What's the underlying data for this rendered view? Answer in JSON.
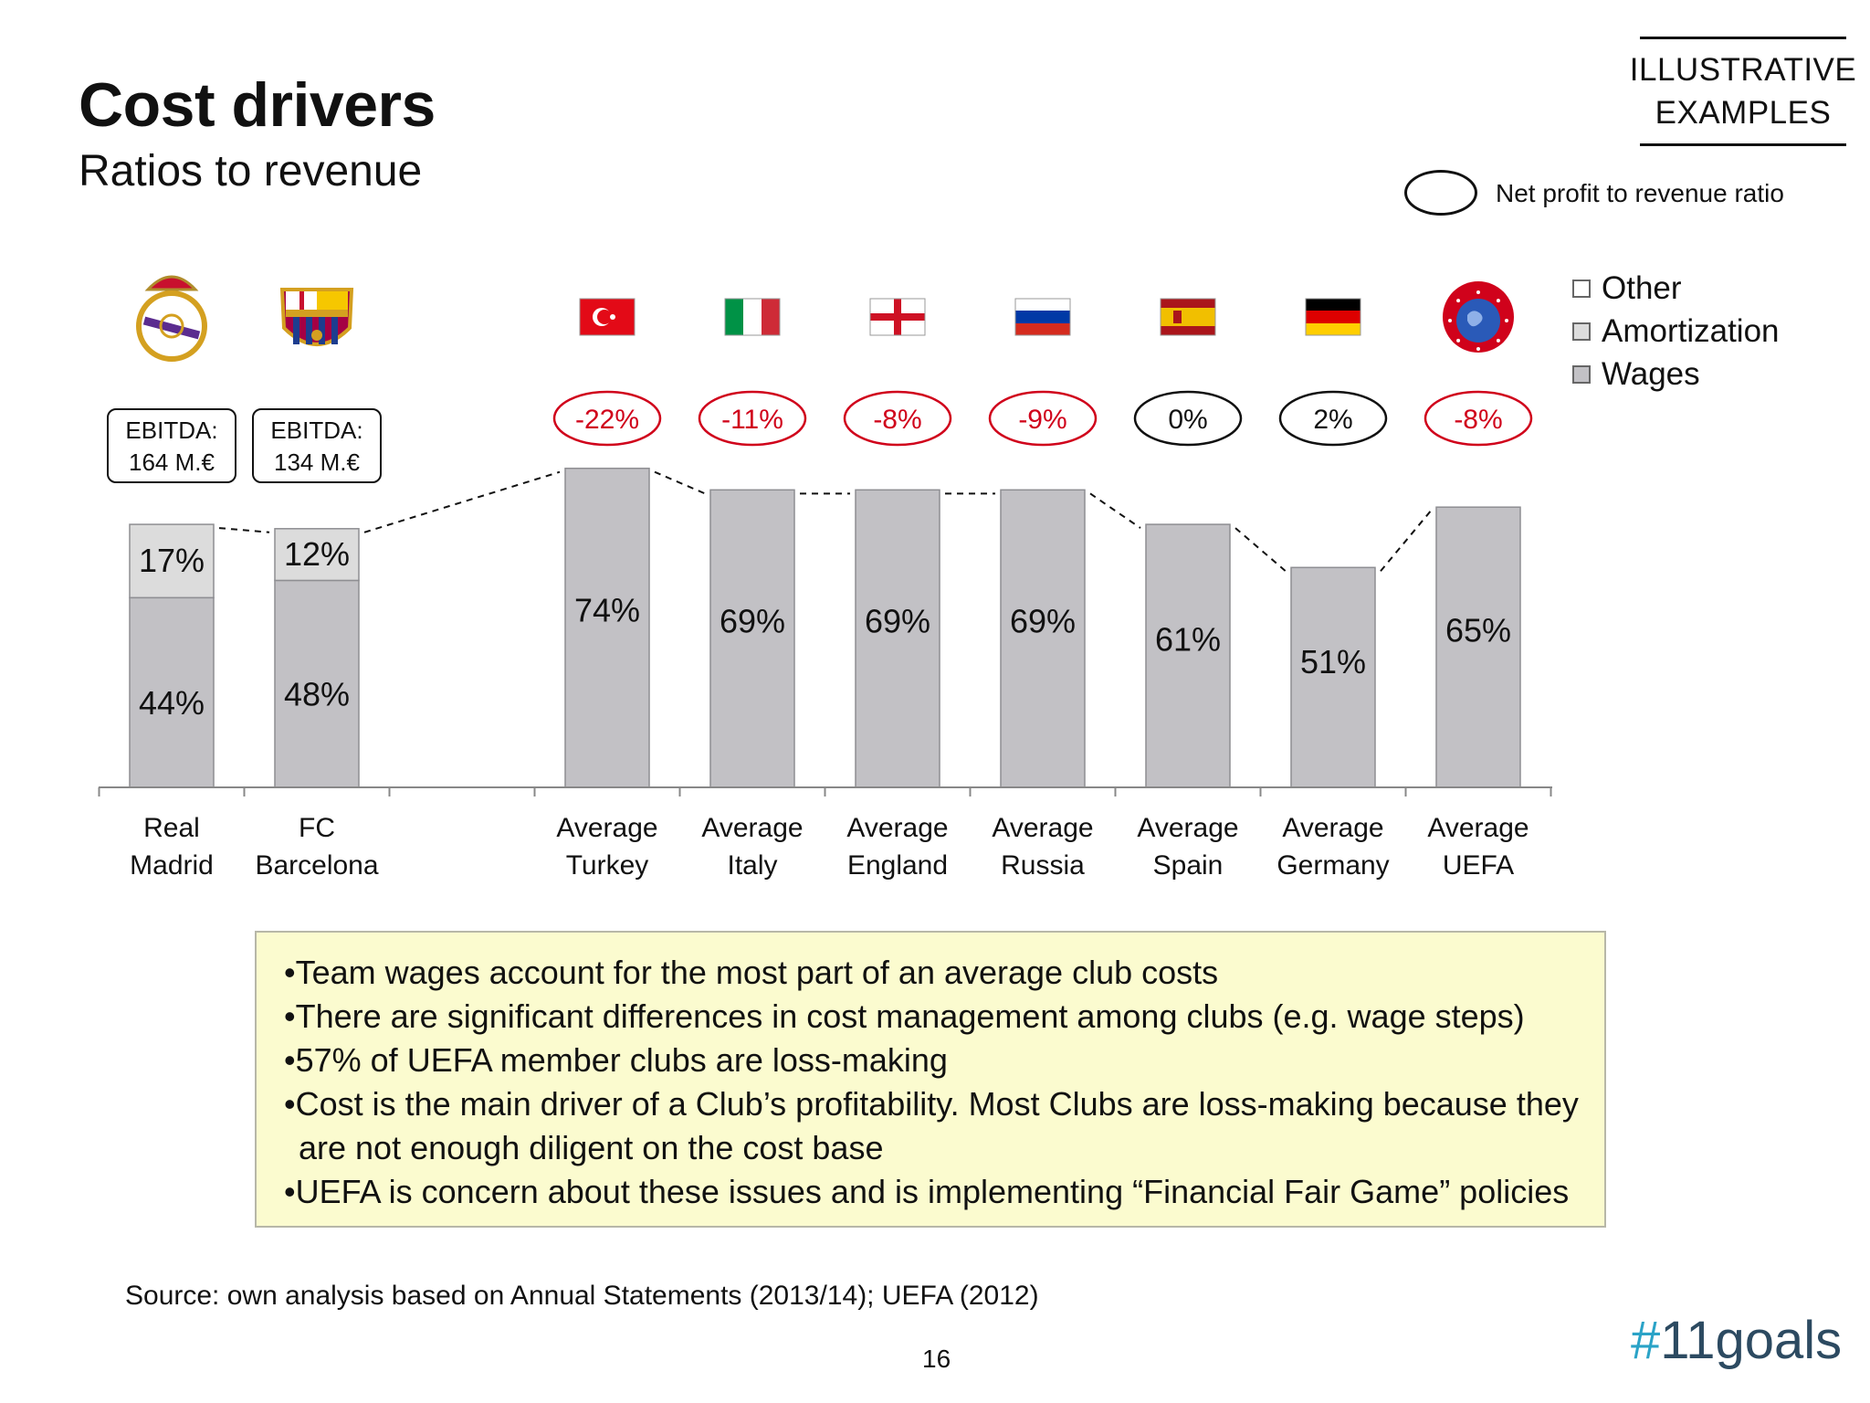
{
  "header": {
    "title": "Cost drivers",
    "subtitle": "Ratios to revenue",
    "tag_line1": "ILLUSTRATIVE",
    "tag_line2": "EXAMPLES"
  },
  "legend": {
    "ellipse_label": "Net profit to revenue ratio",
    "items": [
      {
        "label": "Other",
        "color": "#ffffff"
      },
      {
        "label": "Amortization",
        "color": "#dcdcdc"
      },
      {
        "label": "Wages",
        "color": "#c2c1c5"
      }
    ]
  },
  "chart_data": {
    "type": "bar",
    "stacked": true,
    "categories": [
      "Real Madrid",
      "FC Barcelona",
      "",
      "Average Turkey",
      "Average Italy",
      "Average England",
      "Average Russia",
      "Average Spain",
      "Average Germany",
      "Average UEFA"
    ],
    "series": [
      {
        "name": "Wages",
        "values": [
          44,
          48,
          null,
          74,
          69,
          69,
          69,
          61,
          51,
          65
        ]
      },
      {
        "name": "Amortization",
        "values": [
          17,
          12,
          null,
          null,
          null,
          null,
          null,
          null,
          null,
          null
        ]
      }
    ],
    "bar_labels": [
      [
        "44%",
        "17%"
      ],
      [
        "48%",
        "12%"
      ],
      [],
      [
        "74%"
      ],
      [
        "69%"
      ],
      [
        "69%"
      ],
      [
        "69%"
      ],
      [
        "61%"
      ],
      [
        "51%"
      ],
      [
        "65%"
      ]
    ],
    "net_profit_labels": [
      "",
      "",
      "",
      "-22%",
      "-11%",
      "-8%",
      "-9%",
      "0%",
      "2%",
      "-8%"
    ],
    "net_profit_colors": [
      "",
      "",
      "",
      "#d0021b",
      "#d0021b",
      "#d0021b",
      "#d0021b",
      "#111111",
      "#111111",
      "#d0021b"
    ],
    "ebitda_boxes": [
      {
        "line1": "EBITDA:",
        "line2": "164 M.€"
      },
      {
        "line1": "EBITDA:",
        "line2": "134 M.€"
      }
    ],
    "category_lines": [
      [
        "Real",
        "Madrid"
      ],
      [
        "FC",
        "Barcelona"
      ],
      [],
      [
        "Average",
        "Turkey"
      ],
      [
        "Average",
        "Italy"
      ],
      [
        "Average",
        "England"
      ],
      [
        "Average",
        "Russia"
      ],
      [
        "Average",
        "Spain"
      ],
      [
        "Average",
        "Germany"
      ],
      [
        "Average",
        "UEFA"
      ]
    ],
    "icons": [
      "real-madrid-crest",
      "fc-barcelona-crest",
      "",
      "turkey-flag",
      "italy-flag",
      "england-flag",
      "russia-flag",
      "spain-flag",
      "germany-flag",
      "uefa-logo"
    ],
    "colors": {
      "wages": "#c2c1c5",
      "amortization": "#dcdcdc",
      "negative": "#d0021b",
      "neutral": "#111111"
    }
  },
  "notes": [
    "Team wages account for the most part of an average club costs",
    "There are significant differences in cost management among clubs (e.g. wage steps)",
    "57% of UEFA member clubs are loss-making",
    "Cost is the main driver of a Club’s profitability. Most Clubs are loss-making because they are not enough diligent on the cost base",
    "UEFA is concern about these issues and is implementing “Financial Fair Game” policies"
  ],
  "footer": {
    "source": "Source: own analysis based on Annual Statements (2013/14); UEFA (2012)",
    "page_number": "16",
    "brand_hash": "#",
    "brand_text": "11goals"
  }
}
